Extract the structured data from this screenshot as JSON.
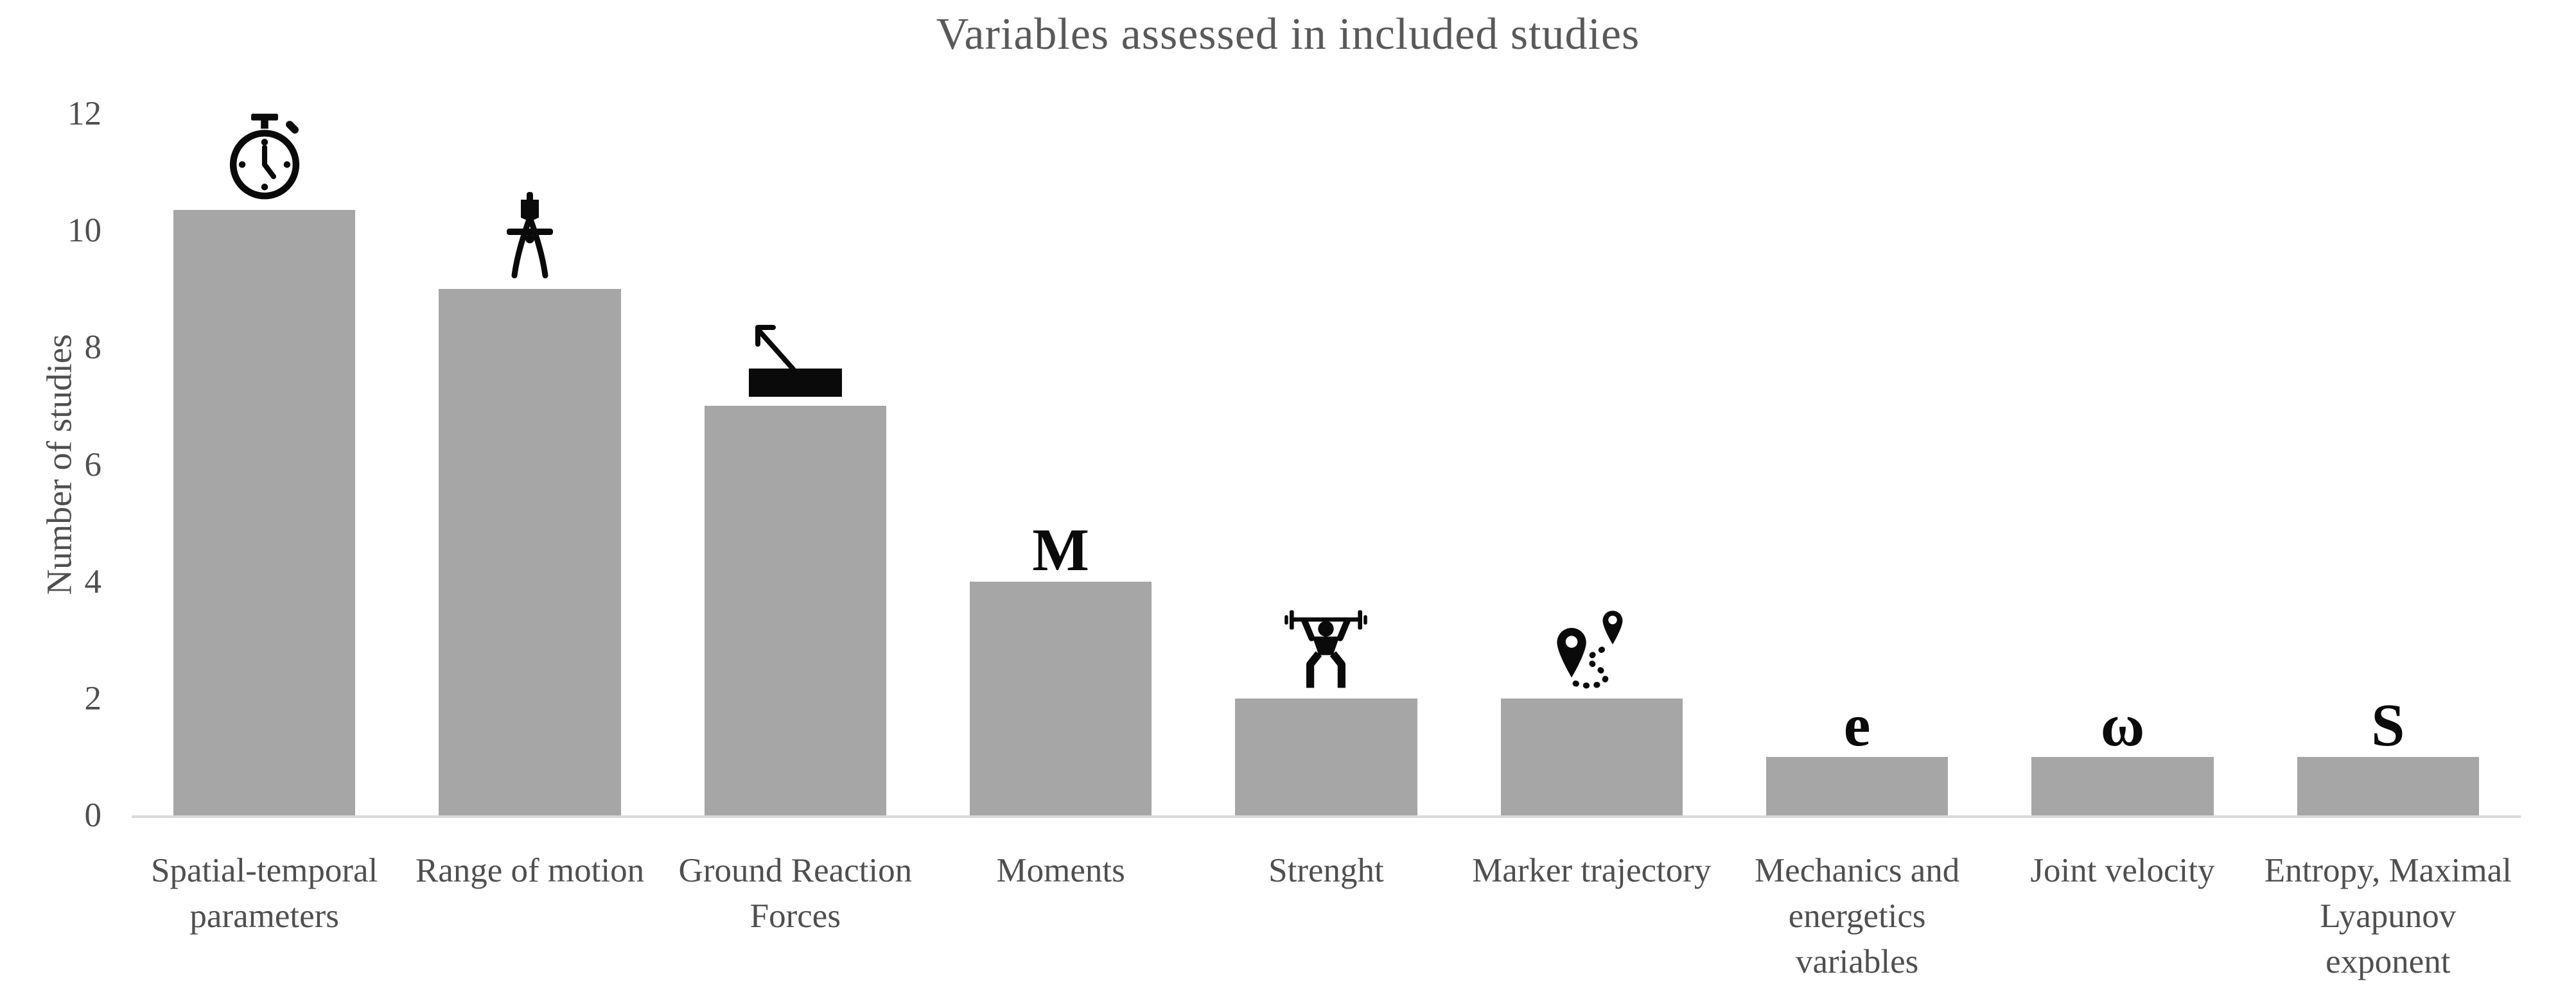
{
  "title": "Variables assessed in included studies",
  "colors": {
    "bar": "#a6a6a6",
    "axis_line": "#d9d9d9",
    "axis_text": "#4f4f4f",
    "title_text": "#595959",
    "icon": "#0a0a0a"
  },
  "chart_data": {
    "type": "bar",
    "title": "Variables assessed in included studies",
    "xlabel": "",
    "ylabel": "Number of studies",
    "ylim": [
      0,
      12
    ],
    "yticks": [
      0,
      2,
      4,
      6,
      8,
      10,
      12
    ],
    "grid": false,
    "legend": null,
    "categories": [
      "Spatial-temporal\nparameters",
      "Range of motion",
      "Ground Reaction\nForces",
      "Moments",
      "Strenght",
      "Marker trajectory",
      "Mechanics and\nenergetics\nvariables",
      "Joint velocity",
      "Entropy, Maximal\nLyapunov\nexponent"
    ],
    "values": [
      11,
      9,
      7,
      4,
      2,
      2,
      1,
      1,
      1
    ],
    "icons": [
      {
        "name": "stopwatch-icon",
        "kind": "svg",
        "text": ""
      },
      {
        "name": "drafting-compass-icon",
        "kind": "svg",
        "text": ""
      },
      {
        "name": "ground-reaction-force-icon",
        "kind": "svg",
        "text": ""
      },
      {
        "name": "moment-letter-icon",
        "kind": "text",
        "text": "M"
      },
      {
        "name": "weightlifter-icon",
        "kind": "svg",
        "text": ""
      },
      {
        "name": "marker-route-icon",
        "kind": "svg",
        "text": ""
      },
      {
        "name": "energetics-letter-icon",
        "kind": "text",
        "text": "e"
      },
      {
        "name": "omega-letter-icon",
        "kind": "text",
        "text": "ω"
      },
      {
        "name": "entropy-letter-icon",
        "kind": "text",
        "text": "S"
      }
    ]
  }
}
